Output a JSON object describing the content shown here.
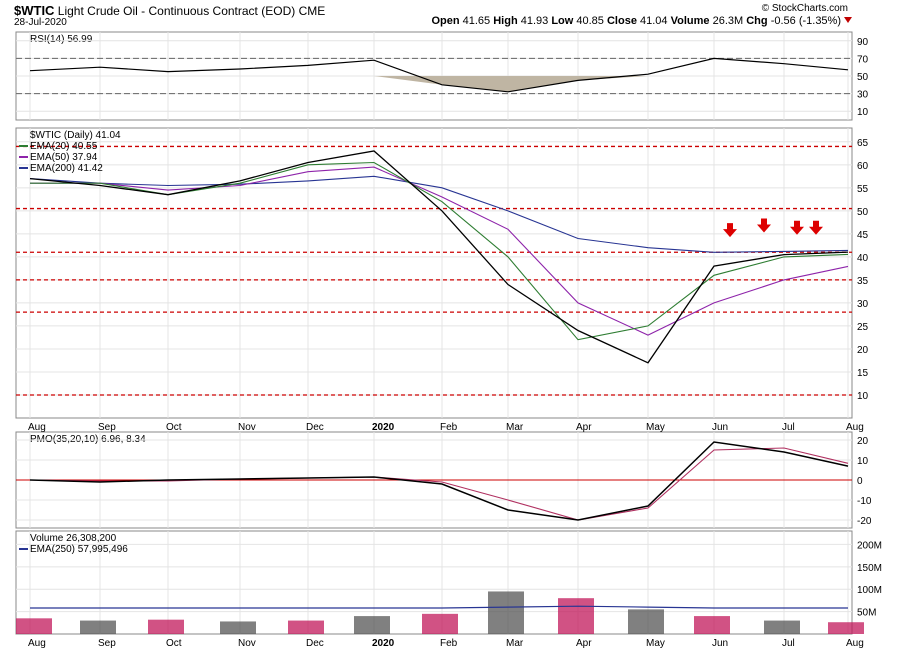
{
  "header": {
    "symbol": "$WTIC",
    "name": "Light Crude Oil - Continuous Contract (EOD)",
    "exchange": "CME",
    "date": "28-Jul-2020",
    "brand": "© StockCharts.com",
    "open_label": "Open",
    "open": "41.65",
    "high_label": "High",
    "high": "41.93",
    "low_label": "Low",
    "low": "40.85",
    "close_label": "Close",
    "close": "41.04",
    "volume_label": "Volume",
    "volume": "26.3M",
    "chg_label": "Chg",
    "chg": "-0.56 (-1.35%)"
  },
  "months": [
    "Aug",
    "Sep",
    "Oct",
    "Nov",
    "Dec",
    "2020",
    "Feb",
    "Mar",
    "Apr",
    "May",
    "Jun",
    "Jul",
    "Aug"
  ],
  "colors": {
    "ema20": "#2e7d32",
    "ema50": "#8e24aa",
    "ema200": "#283593",
    "price": "#000000",
    "resistance": "#cc0000",
    "pmo_signal": "#b03060",
    "volume_up": "#555555",
    "volume_down": "#c2185b",
    "rsi_fill": "#bfb5a3"
  },
  "chart_data": [
    {
      "type": "line",
      "panel": "rsi",
      "title": "RSI(14) 56.99",
      "ylim": [
        0,
        100
      ],
      "ticks": [
        90,
        70,
        50,
        30,
        10
      ],
      "reference_lines": [
        70,
        30
      ],
      "x": [
        "Aug",
        "Sep",
        "Oct",
        "Nov",
        "Dec",
        "2020",
        "Feb",
        "Mar",
        "Apr",
        "May",
        "Jun",
        "Jul",
        "Aug"
      ],
      "series": [
        {
          "name": "RSI(14)",
          "values": [
            56,
            60,
            55,
            58,
            62,
            68,
            40,
            32,
            45,
            52,
            70,
            64,
            57
          ]
        }
      ]
    },
    {
      "type": "line",
      "panel": "price",
      "title": "$WTIC (Daily) 41.04",
      "ylim": [
        5,
        68
      ],
      "ticks": [
        65,
        60,
        55,
        50,
        45,
        40,
        35,
        30,
        25,
        20,
        15,
        10
      ],
      "resistance_lines": [
        64,
        50.5,
        41,
        35,
        28,
        10
      ],
      "x": [
        "Aug",
        "Sep",
        "Oct",
        "Nov",
        "Dec",
        "2020",
        "Feb",
        "Mar",
        "Apr",
        "May",
        "Jun",
        "Jul",
        "Aug"
      ],
      "series": [
        {
          "name": "$WTIC (Daily) 41.04",
          "values": [
            57,
            55.5,
            53.5,
            56.5,
            60.5,
            63,
            50,
            34,
            24,
            17,
            38,
            40.5,
            41.04
          ]
        },
        {
          "name": "EMA(20) 40.55",
          "values": [
            56,
            56,
            53.5,
            56,
            60,
            60.5,
            52,
            40,
            22,
            25,
            36,
            40,
            40.55
          ]
        },
        {
          "name": "EMA(50) 37.94",
          "values": [
            56,
            56,
            54.5,
            55.5,
            58.5,
            59.5,
            53,
            46,
            30,
            23,
            30,
            35,
            37.94
          ]
        },
        {
          "name": "EMA(200) 41.42",
          "values": [
            57,
            56,
            55.5,
            55.8,
            56.5,
            57.5,
            55,
            50,
            44,
            42,
            41,
            41.2,
            41.42
          ]
        }
      ],
      "annotations": [
        {
          "type": "arrow",
          "x": "Jun",
          "y": 43
        },
        {
          "type": "arrow",
          "x": "Jun/Jul",
          "y": 44
        },
        {
          "type": "arrow",
          "x": "Jul",
          "y": 43.5
        },
        {
          "type": "arrow",
          "x": "Jul",
          "y": 43.5
        }
      ]
    },
    {
      "type": "line",
      "panel": "pmo",
      "title": "PMO(35,20,10) 6.96, 8.34",
      "ylim": [
        -24,
        24
      ],
      "ticks": [
        20,
        10,
        0,
        -10,
        -20
      ],
      "x": [
        "Aug",
        "Sep",
        "Oct",
        "Nov",
        "Dec",
        "2020",
        "Feb",
        "Mar",
        "Apr",
        "May",
        "Jun",
        "Jul",
        "Aug"
      ],
      "series": [
        {
          "name": "PMO",
          "values": [
            0,
            -1,
            0,
            0.5,
            1,
            1.5,
            -2,
            -15,
            -20,
            -13,
            19,
            14,
            6.96
          ]
        },
        {
          "name": "Signal",
          "values": [
            0,
            -0.5,
            -0.5,
            0.5,
            1,
            1.5,
            -1,
            -10,
            -20,
            -14,
            15,
            16,
            8.34
          ]
        }
      ]
    },
    {
      "type": "bar",
      "panel": "volume",
      "title": "Volume 26,308,200",
      "ylim": [
        0,
        230
      ],
      "ticks": [
        "200M",
        "150M",
        "100M",
        "50M"
      ],
      "x": [
        "Aug",
        "Sep",
        "Oct",
        "Nov",
        "Dec",
        "2020",
        "Feb",
        "Mar",
        "Apr",
        "May",
        "Jun",
        "Jul",
        "Aug"
      ],
      "series": [
        {
          "name": "Volume",
          "values": [
            35,
            30,
            32,
            28,
            30,
            40,
            45,
            95,
            80,
            55,
            40,
            30,
            26.3
          ]
        },
        {
          "name": "EMA(250) 57,995,496",
          "values": [
            58,
            58,
            58,
            58,
            58,
            58,
            58,
            60,
            62,
            60,
            58,
            58,
            58
          ]
        }
      ]
    }
  ]
}
